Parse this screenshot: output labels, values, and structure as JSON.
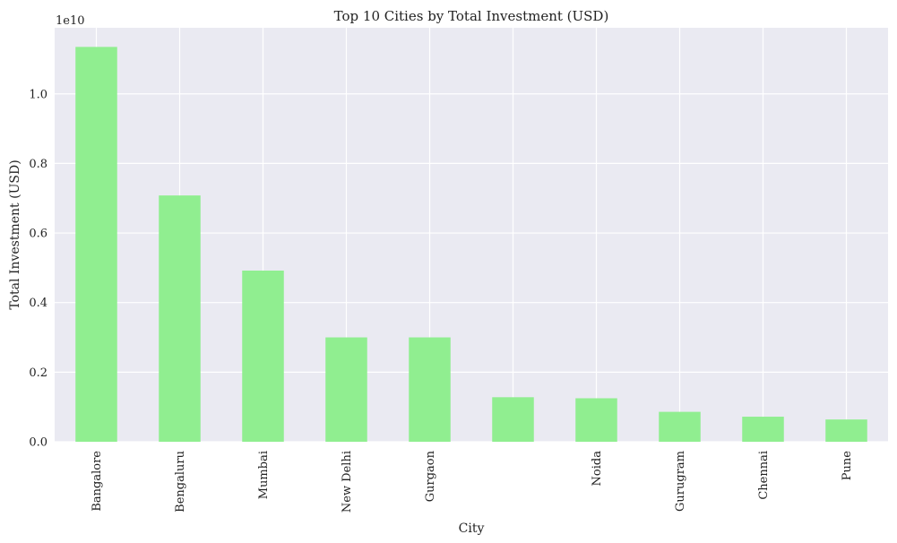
{
  "chart_data": {
    "type": "bar",
    "title": "Top 10 Cities by Total Investment (USD)",
    "xlabel": "City",
    "ylabel": "Total Investment (USD)",
    "y_offset_label": "1e10",
    "y_scale": 10000000000,
    "categories": [
      "Bangalore",
      "Bengaluru",
      "Mumbai",
      "New Delhi",
      "Gurgaon",
      "",
      "Noida",
      "Gurugram",
      "Chennai",
      "Pune"
    ],
    "values": [
      11350000000,
      7080000000,
      4920000000,
      3000000000,
      3000000000,
      1280000000,
      1250000000,
      860000000,
      720000000,
      640000000
    ],
    "y_ticks": [
      0.0,
      0.2,
      0.4,
      0.6,
      0.8,
      1.0
    ],
    "y_tick_labels": [
      "0.0",
      "0.2",
      "0.4",
      "0.6",
      "0.8",
      "1.0"
    ],
    "ylim": [
      0,
      11900000000
    ],
    "grid": true,
    "colors": {
      "bar": "#90ee90",
      "plot_background": "#eaeaf2",
      "grid": "#ffffff"
    }
  }
}
